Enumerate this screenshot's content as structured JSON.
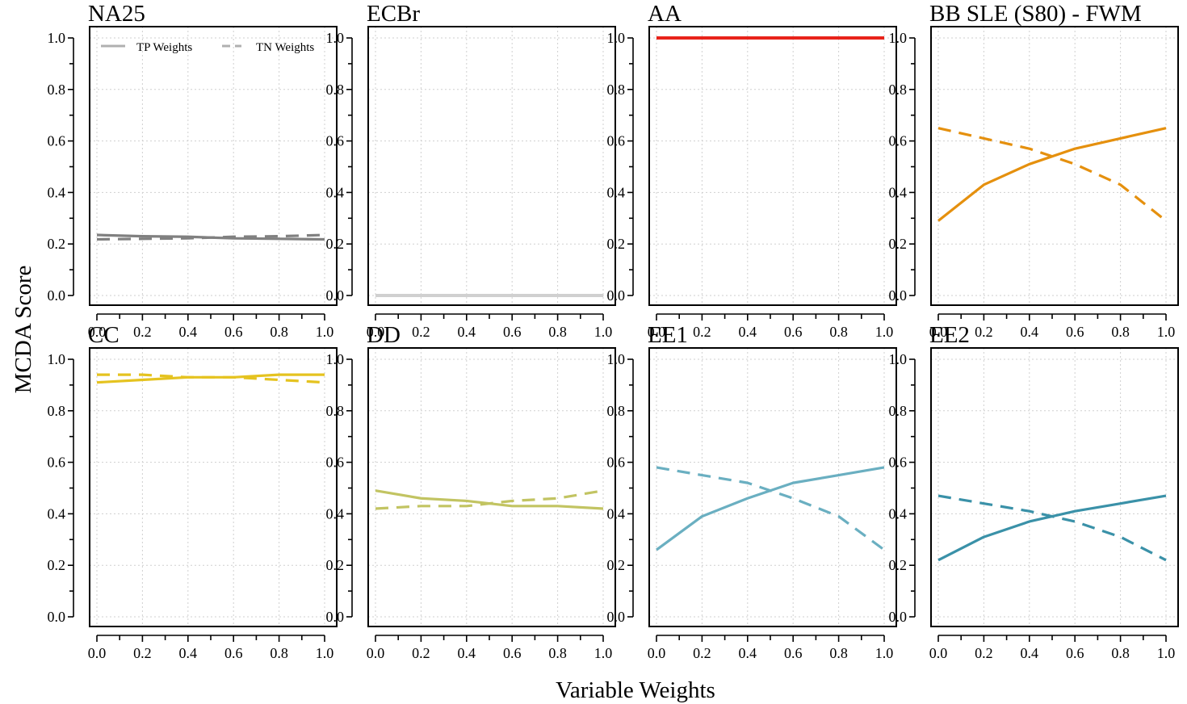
{
  "figure": {
    "xlabel": "Variable Weights",
    "ylabel": "MCDA Score"
  },
  "legend": {
    "placement": "top-left of first panel",
    "entries": [
      {
        "label": "TP Weights",
        "style": "solid",
        "color": "#b0b0b0"
      },
      {
        "label": "TN Weights",
        "style": "dashed",
        "color": "#b0b0b0"
      }
    ]
  },
  "chart_data": [
    {
      "type": "line",
      "title": "NA25",
      "color": "#808080",
      "xlim": [
        0,
        1
      ],
      "ylim": [
        0,
        1
      ],
      "grid": true,
      "x": [
        0,
        0.2,
        0.4,
        0.6,
        0.8,
        1.0
      ],
      "series": [
        {
          "name": "TP Weights",
          "style": "solid",
          "values": [
            0.235,
            0.23,
            0.228,
            0.222,
            0.22,
            0.218
          ]
        },
        {
          "name": "TN Weights",
          "style": "dashed",
          "values": [
            0.218,
            0.22,
            0.222,
            0.228,
            0.23,
            0.235
          ]
        }
      ]
    },
    {
      "type": "line",
      "title": "ECBr",
      "color": "#d0d0d0",
      "xlim": [
        0,
        1
      ],
      "ylim": [
        0,
        1
      ],
      "grid": true,
      "x": [
        0,
        0.2,
        0.4,
        0.6,
        0.8,
        1.0
      ],
      "series": [
        {
          "name": "TP Weights",
          "style": "solid",
          "values": [
            0,
            0,
            0,
            0,
            0,
            0
          ]
        },
        {
          "name": "TN Weights",
          "style": "dashed",
          "values": [
            0,
            0,
            0,
            0,
            0,
            0
          ]
        }
      ]
    },
    {
      "type": "line",
      "title": "AA",
      "color": "#e8231a",
      "xlim": [
        0,
        1
      ],
      "ylim": [
        0,
        1
      ],
      "grid": true,
      "x": [
        0,
        0.2,
        0.4,
        0.6,
        0.8,
        1.0
      ],
      "series": [
        {
          "name": "TP Weights",
          "style": "solid",
          "values": [
            1,
            1,
            1,
            1,
            1,
            1
          ]
        },
        {
          "name": "TN Weights",
          "style": "dashed",
          "values": [
            1,
            1,
            1,
            1,
            1,
            1
          ]
        }
      ]
    },
    {
      "type": "line",
      "title": "BB  SLE (S80) - FWM",
      "color": "#e5900e",
      "xlim": [
        0,
        1
      ],
      "ylim": [
        0,
        1
      ],
      "grid": true,
      "x": [
        0,
        0.2,
        0.4,
        0.6,
        0.8,
        1.0
      ],
      "series": [
        {
          "name": "TP Weights",
          "style": "solid",
          "values": [
            0.29,
            0.43,
            0.51,
            0.57,
            0.61,
            0.65
          ]
        },
        {
          "name": "TN Weights",
          "style": "dashed",
          "values": [
            0.65,
            0.61,
            0.57,
            0.51,
            0.43,
            0.29
          ]
        }
      ]
    },
    {
      "type": "line",
      "title": "CC",
      "color": "#e5c320",
      "xlim": [
        0,
        1
      ],
      "ylim": [
        0,
        1
      ],
      "grid": true,
      "x": [
        0,
        0.2,
        0.4,
        0.6,
        0.8,
        1.0
      ],
      "series": [
        {
          "name": "TP Weights",
          "style": "solid",
          "values": [
            0.91,
            0.92,
            0.93,
            0.93,
            0.94,
            0.94
          ]
        },
        {
          "name": "TN Weights",
          "style": "dashed",
          "values": [
            0.94,
            0.94,
            0.93,
            0.93,
            0.92,
            0.91
          ]
        }
      ]
    },
    {
      "type": "line",
      "title": "DD",
      "color": "#c2c462",
      "xlim": [
        0,
        1
      ],
      "ylim": [
        0,
        1
      ],
      "grid": true,
      "x": [
        0,
        0.2,
        0.4,
        0.6,
        0.8,
        1.0
      ],
      "series": [
        {
          "name": "TP Weights",
          "style": "solid",
          "values": [
            0.49,
            0.46,
            0.45,
            0.43,
            0.43,
            0.42
          ]
        },
        {
          "name": "TN Weights",
          "style": "dashed",
          "values": [
            0.42,
            0.43,
            0.43,
            0.45,
            0.46,
            0.49
          ]
        }
      ]
    },
    {
      "type": "line",
      "title": "EE1",
      "color": "#6aafc1",
      "xlim": [
        0,
        1
      ],
      "ylim": [
        0,
        1
      ],
      "grid": true,
      "x": [
        0,
        0.2,
        0.4,
        0.6,
        0.8,
        1.0
      ],
      "series": [
        {
          "name": "TP Weights",
          "style": "solid",
          "values": [
            0.26,
            0.39,
            0.46,
            0.52,
            0.55,
            0.58
          ]
        },
        {
          "name": "TN Weights",
          "style": "dashed",
          "values": [
            0.58,
            0.55,
            0.52,
            0.46,
            0.39,
            0.26
          ]
        }
      ]
    },
    {
      "type": "line",
      "title": "EE2",
      "color": "#3a91a8",
      "xlim": [
        0,
        1
      ],
      "ylim": [
        0,
        1
      ],
      "grid": true,
      "x": [
        0,
        0.2,
        0.4,
        0.6,
        0.8,
        1.0
      ],
      "series": [
        {
          "name": "TP Weights",
          "style": "solid",
          "values": [
            0.22,
            0.31,
            0.37,
            0.41,
            0.44,
            0.47
          ]
        },
        {
          "name": "TN Weights",
          "style": "dashed",
          "values": [
            0.47,
            0.44,
            0.41,
            0.37,
            0.31,
            0.22
          ]
        }
      ]
    }
  ],
  "axes": {
    "x_ticks": [
      "0.0",
      "0.2",
      "0.4",
      "0.6",
      "0.8",
      "1.0"
    ],
    "y_ticks": [
      "0.0",
      "0.2",
      "0.4",
      "0.6",
      "0.8",
      "1.0"
    ]
  }
}
